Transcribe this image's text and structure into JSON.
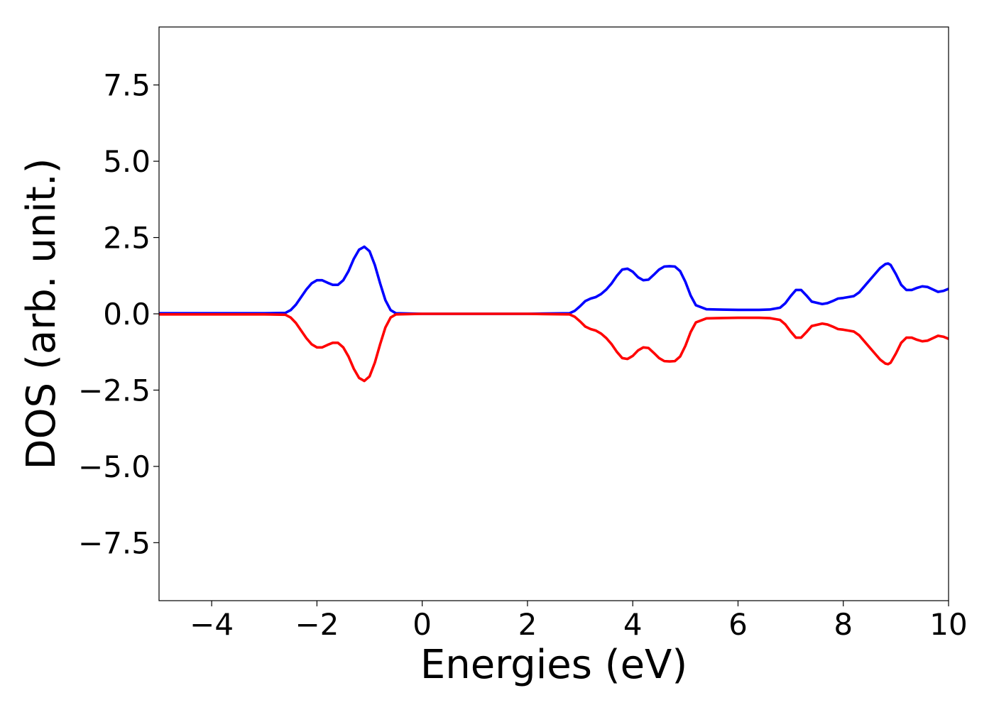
{
  "chart_data": {
    "type": "line",
    "title": "",
    "xlabel": "Energies (eV)",
    "ylabel": "DOS (arb. unit.)",
    "xlim": [
      -5,
      10
    ],
    "ylim": [
      -9.4,
      9.4
    ],
    "grid": false,
    "x_ticks": [
      -4,
      -2,
      0,
      2,
      4,
      6,
      8,
      10
    ],
    "x_tick_labels": [
      "−4",
      "−2",
      "0",
      "2",
      "4",
      "6",
      "8",
      "10"
    ],
    "y_ticks": [
      7.5,
      5.0,
      2.5,
      0.0,
      -2.5,
      -5.0,
      -7.5
    ],
    "y_tick_labels": [
      "7.5",
      "5.0",
      "2.5",
      "0.0",
      "−2.5",
      "−5.0",
      "−7.5"
    ],
    "series": [
      {
        "color": "#0000ff",
        "x": [
          -5,
          -3,
          -2.6,
          -2.5,
          -2.4,
          -2.3,
          -2.2,
          -2.1,
          -2.0,
          -1.9,
          -1.8,
          -1.7,
          -1.6,
          -1.5,
          -1.4,
          -1.3,
          -1.2,
          -1.1,
          -1.0,
          -0.9,
          -0.8,
          -0.7,
          -0.6,
          -0.5,
          0,
          2,
          2.8,
          2.9,
          3.0,
          3.1,
          3.2,
          3.3,
          3.4,
          3.5,
          3.6,
          3.7,
          3.8,
          3.9,
          4.0,
          4.1,
          4.2,
          4.3,
          4.4,
          4.5,
          4.6,
          4.7,
          4.8,
          4.9,
          5.0,
          5.1,
          5.2,
          5.4,
          5.6,
          6.0,
          6.4,
          6.6,
          6.8,
          6.9,
          7.0,
          7.1,
          7.2,
          7.3,
          7.4,
          7.6,
          7.7,
          7.8,
          7.9,
          8.0,
          8.1,
          8.2,
          8.3,
          8.4,
          8.5,
          8.6,
          8.7,
          8.8,
          8.85,
          8.9,
          9.0,
          9.1,
          9.2,
          9.3,
          9.4,
          9.5,
          9.6,
          9.7,
          9.8,
          9.9,
          10.0
        ],
        "values": [
          0.02,
          0.02,
          0.03,
          0.12,
          0.3,
          0.55,
          0.8,
          1.0,
          1.1,
          1.1,
          1.02,
          0.95,
          0.95,
          1.1,
          1.4,
          1.8,
          2.1,
          2.2,
          2.05,
          1.6,
          1.0,
          0.45,
          0.12,
          0.02,
          0.0,
          0.0,
          0.02,
          0.1,
          0.25,
          0.42,
          0.5,
          0.55,
          0.65,
          0.8,
          1.0,
          1.25,
          1.45,
          1.48,
          1.38,
          1.2,
          1.1,
          1.12,
          1.28,
          1.45,
          1.55,
          1.56,
          1.55,
          1.4,
          1.05,
          0.6,
          0.28,
          0.15,
          0.14,
          0.13,
          0.13,
          0.14,
          0.2,
          0.35,
          0.58,
          0.78,
          0.78,
          0.6,
          0.4,
          0.32,
          0.35,
          0.42,
          0.5,
          0.52,
          0.55,
          0.58,
          0.7,
          0.9,
          1.1,
          1.3,
          1.5,
          1.63,
          1.65,
          1.6,
          1.3,
          0.95,
          0.78,
          0.78,
          0.85,
          0.9,
          0.88,
          0.8,
          0.72,
          0.75,
          0.82
        ]
      },
      {
        "color": "#ff0000",
        "x": [
          -5,
          -3,
          -2.6,
          -2.5,
          -2.4,
          -2.3,
          -2.2,
          -2.1,
          -2.0,
          -1.9,
          -1.8,
          -1.7,
          -1.6,
          -1.5,
          -1.4,
          -1.3,
          -1.2,
          -1.1,
          -1.0,
          -0.9,
          -0.8,
          -0.7,
          -0.6,
          -0.5,
          0,
          2,
          2.8,
          2.9,
          3.0,
          3.1,
          3.2,
          3.3,
          3.4,
          3.5,
          3.6,
          3.7,
          3.8,
          3.9,
          4.0,
          4.1,
          4.2,
          4.3,
          4.4,
          4.5,
          4.6,
          4.7,
          4.8,
          4.9,
          5.0,
          5.1,
          5.2,
          5.4,
          5.6,
          6.0,
          6.4,
          6.6,
          6.8,
          6.9,
          7.0,
          7.1,
          7.2,
          7.3,
          7.4,
          7.6,
          7.7,
          7.8,
          7.9,
          8.0,
          8.1,
          8.2,
          8.3,
          8.4,
          8.5,
          8.6,
          8.7,
          8.8,
          8.85,
          8.9,
          9.0,
          9.1,
          9.2,
          9.3,
          9.4,
          9.5,
          9.6,
          9.7,
          9.8,
          9.9,
          10.0
        ],
        "values": [
          -0.02,
          -0.02,
          -0.03,
          -0.12,
          -0.3,
          -0.55,
          -0.8,
          -1.0,
          -1.1,
          -1.1,
          -1.02,
          -0.95,
          -0.95,
          -1.1,
          -1.4,
          -1.8,
          -2.1,
          -2.2,
          -2.05,
          -1.6,
          -1.0,
          -0.45,
          -0.12,
          -0.02,
          0.0,
          0.0,
          -0.02,
          -0.1,
          -0.25,
          -0.42,
          -0.5,
          -0.55,
          -0.65,
          -0.8,
          -1.0,
          -1.25,
          -1.45,
          -1.48,
          -1.38,
          -1.2,
          -1.1,
          -1.12,
          -1.28,
          -1.45,
          -1.55,
          -1.56,
          -1.55,
          -1.4,
          -1.05,
          -0.6,
          -0.28,
          -0.15,
          -0.14,
          -0.13,
          -0.13,
          -0.14,
          -0.2,
          -0.35,
          -0.58,
          -0.78,
          -0.78,
          -0.6,
          -0.4,
          -0.32,
          -0.35,
          -0.42,
          -0.5,
          -0.52,
          -0.55,
          -0.58,
          -0.7,
          -0.9,
          -1.1,
          -1.3,
          -1.5,
          -1.63,
          -1.65,
          -1.6,
          -1.3,
          -0.95,
          -0.78,
          -0.78,
          -0.85,
          -0.9,
          -0.88,
          -0.8,
          -0.72,
          -0.75,
          -0.82
        ]
      }
    ]
  }
}
